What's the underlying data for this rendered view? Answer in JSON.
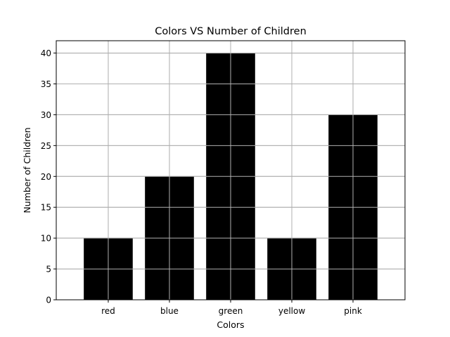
{
  "chart_data": {
    "type": "bar",
    "title": "Colors VS Number of Children",
    "xlabel": "Colors",
    "ylabel": "Number of Children",
    "categories": [
      "red",
      "blue",
      "green",
      "yellow",
      "pink"
    ],
    "values": [
      10,
      20,
      40,
      10,
      30
    ],
    "ylim": [
      0,
      42
    ],
    "yticks": [
      0,
      5,
      10,
      15,
      20,
      25,
      30,
      35,
      40
    ],
    "grid": true,
    "legend": "none",
    "bar_color": "#000000",
    "grid_color": "#b0b0b0"
  }
}
